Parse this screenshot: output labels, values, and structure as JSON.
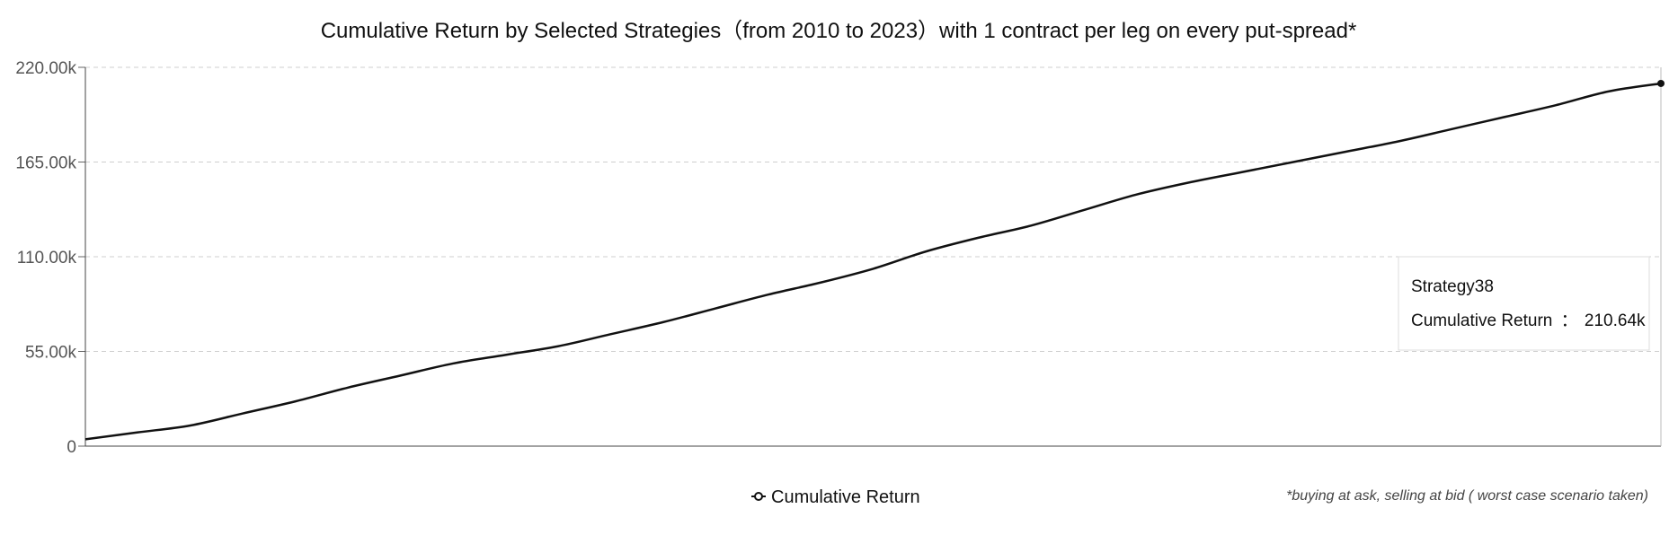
{
  "chart_data": {
    "type": "line",
    "title": "Cumulative Return by Selected Strategies（from 2010 to 2023）with 1 contract per leg on every put-spread*",
    "footnote": "*buying at ask, selling at bid ( worst case scenario taken)",
    "xlabel": "",
    "ylabel": "",
    "ylim": [
      0,
      220000
    ],
    "yticks": [
      0,
      55000,
      110000,
      165000,
      220000
    ],
    "ytick_labels": [
      "0",
      "55.00k",
      "110.00k",
      "165.00k",
      "220.00k"
    ],
    "grid": true,
    "legend_position": "bottom-center",
    "series": [
      {
        "name": "Cumulative Return",
        "color": "#111111",
        "values": [
          4000,
          8000,
          12000,
          19000,
          26000,
          34000,
          41000,
          48000,
          53000,
          58000,
          65000,
          72000,
          80000,
          88000,
          95000,
          103000,
          113000,
          121000,
          128000,
          137000,
          146000,
          153000,
          159000,
          165000,
          171000,
          177000,
          184000,
          191000,
          198000,
          206000,
          210640
        ]
      }
    ],
    "tooltip": {
      "title": "Strategy38",
      "label": "Cumulative Return",
      "separator": "：",
      "value": "210.64k"
    }
  }
}
